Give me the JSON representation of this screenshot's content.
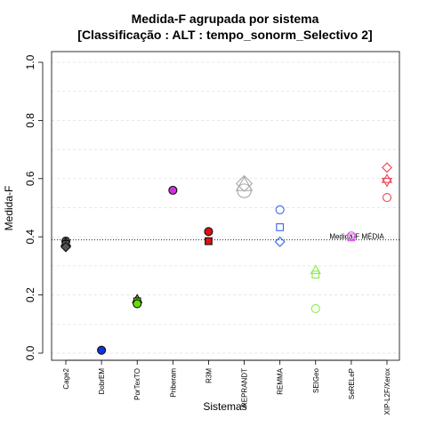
{
  "chart_data": {
    "type": "scatter",
    "title": "Medida-F agrupada por sistema",
    "subtitle": "[Classificação : ALT : tempo_sonorm_Selectivo 2]",
    "xlabel": "Sistemas",
    "ylabel": "Medida-F",
    "ylim": [
      0,
      1
    ],
    "y_ticks": [
      "0.0",
      "0.2",
      "0.4",
      "0.6",
      "0.8",
      "1.0"
    ],
    "grid": true,
    "categories": [
      "Cage2",
      "DobrEM",
      "PorTexTO",
      "Priberam",
      "R3M",
      "REPRANDT",
      "REMMA",
      "SEIGeo",
      "SeRELeP",
      "XIP-L2F/Xerox"
    ],
    "reference_line": {
      "value": 0.39,
      "label": "Medida-F MÉDIA"
    },
    "points": [
      {
        "category": "Cage2",
        "y": 0.385,
        "shape": "circle",
        "filled": true,
        "color": "#555555"
      },
      {
        "category": "Cage2",
        "y": 0.38,
        "shape": "triangle",
        "filled": true,
        "color": "#555555"
      },
      {
        "category": "Cage2",
        "y": 0.375,
        "shape": "square",
        "filled": true,
        "color": "#555555"
      },
      {
        "category": "Cage2",
        "y": 0.365,
        "shape": "diamond",
        "filled": true,
        "color": "#555555"
      },
      {
        "category": "DobrEM",
        "y": 0.01,
        "shape": "circle",
        "filled": true,
        "color": "#1133dd"
      },
      {
        "category": "PorTexTO",
        "y": 0.185,
        "shape": "triangle",
        "filled": true,
        "color": "#66dd00"
      },
      {
        "category": "PorTexTO",
        "y": 0.178,
        "shape": "square",
        "filled": true,
        "color": "#66dd00"
      },
      {
        "category": "PorTexTO",
        "y": 0.17,
        "shape": "circle",
        "filled": true,
        "color": "#66dd00"
      },
      {
        "category": "Priberam",
        "y": 0.56,
        "shape": "circle",
        "filled": true,
        "color": "#cc33dd"
      },
      {
        "category": "R3M",
        "y": 0.418,
        "shape": "circle",
        "filled": true,
        "color": "#dd1111"
      },
      {
        "category": "R3M",
        "y": 0.385,
        "shape": "square",
        "filled": true,
        "color": "#dd1111"
      },
      {
        "category": "REPRANDT",
        "y": 0.583,
        "shape": "diamond",
        "filled": false,
        "color": "#aaaaaa"
      },
      {
        "category": "REPRANDT",
        "y": 0.578,
        "shape": "triangle",
        "filled": false,
        "color": "#aaaaaa"
      },
      {
        "category": "REPRANDT",
        "y": 0.558,
        "shape": "circle",
        "filled": false,
        "color": "#aaaaaa"
      },
      {
        "category": "REMMA",
        "y": 0.493,
        "shape": "circle",
        "filled": false,
        "color": "#3366ee"
      },
      {
        "category": "REMMA",
        "y": 0.433,
        "shape": "square",
        "filled": false,
        "color": "#3366ee"
      },
      {
        "category": "REMMA",
        "y": 0.383,
        "shape": "diamond",
        "filled": false,
        "color": "#3366ee"
      },
      {
        "category": "SEIGeo",
        "y": 0.285,
        "shape": "triangle",
        "filled": false,
        "color": "#88ee44"
      },
      {
        "category": "SEIGeo",
        "y": 0.27,
        "shape": "square",
        "filled": false,
        "color": "#88ee44"
      },
      {
        "category": "SEIGeo",
        "y": 0.153,
        "shape": "circle",
        "filled": false,
        "color": "#88ee44"
      },
      {
        "category": "SeRELeP",
        "y": 0.403,
        "shape": "circle",
        "filled": false,
        "color": "#dd55ee"
      },
      {
        "category": "SeRELeP",
        "y": 0.398,
        "shape": "square",
        "filled": false,
        "color": "#dd55ee"
      },
      {
        "category": "XIP-L2F/Xerox",
        "y": 0.638,
        "shape": "diamond",
        "filled": false,
        "color": "#ee4455"
      },
      {
        "category": "XIP-L2F/Xerox",
        "y": 0.598,
        "shape": "triangle",
        "filled": false,
        "color": "#ee4455"
      },
      {
        "category": "XIP-L2F/Xerox",
        "y": 0.59,
        "shape": "triangle-down",
        "filled": false,
        "color": "#ee4455"
      },
      {
        "category": "XIP-L2F/Xerox",
        "y": 0.535,
        "shape": "circle",
        "filled": false,
        "color": "#ee4455"
      }
    ]
  }
}
